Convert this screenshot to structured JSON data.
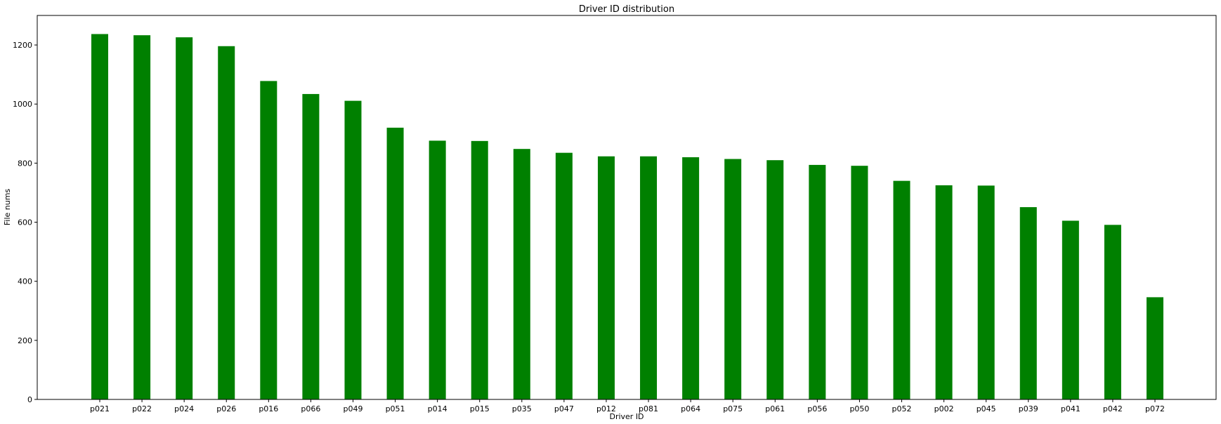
{
  "chart_data": {
    "type": "bar",
    "title": "Driver ID distribution",
    "xlabel": "Driver ID",
    "ylabel": "File nums",
    "categories": [
      "p021",
      "p022",
      "p024",
      "p026",
      "p016",
      "p066",
      "p049",
      "p051",
      "p014",
      "p015",
      "p035",
      "p047",
      "p012",
      "p081",
      "p064",
      "p075",
      "p061",
      "p056",
      "p050",
      "p052",
      "p002",
      "p045",
      "p039",
      "p041",
      "p042",
      "p072"
    ],
    "values": [
      1237,
      1233,
      1226,
      1196,
      1078,
      1034,
      1011,
      920,
      876,
      875,
      848,
      835,
      823,
      823,
      820,
      814,
      810,
      794,
      791,
      740,
      725,
      724,
      651,
      605,
      591,
      346
    ],
    "ylim": [
      0,
      1300
    ],
    "yticks": [
      0,
      200,
      400,
      600,
      800,
      1000,
      1200
    ],
    "bar_color": "#008000",
    "grid": false
  }
}
